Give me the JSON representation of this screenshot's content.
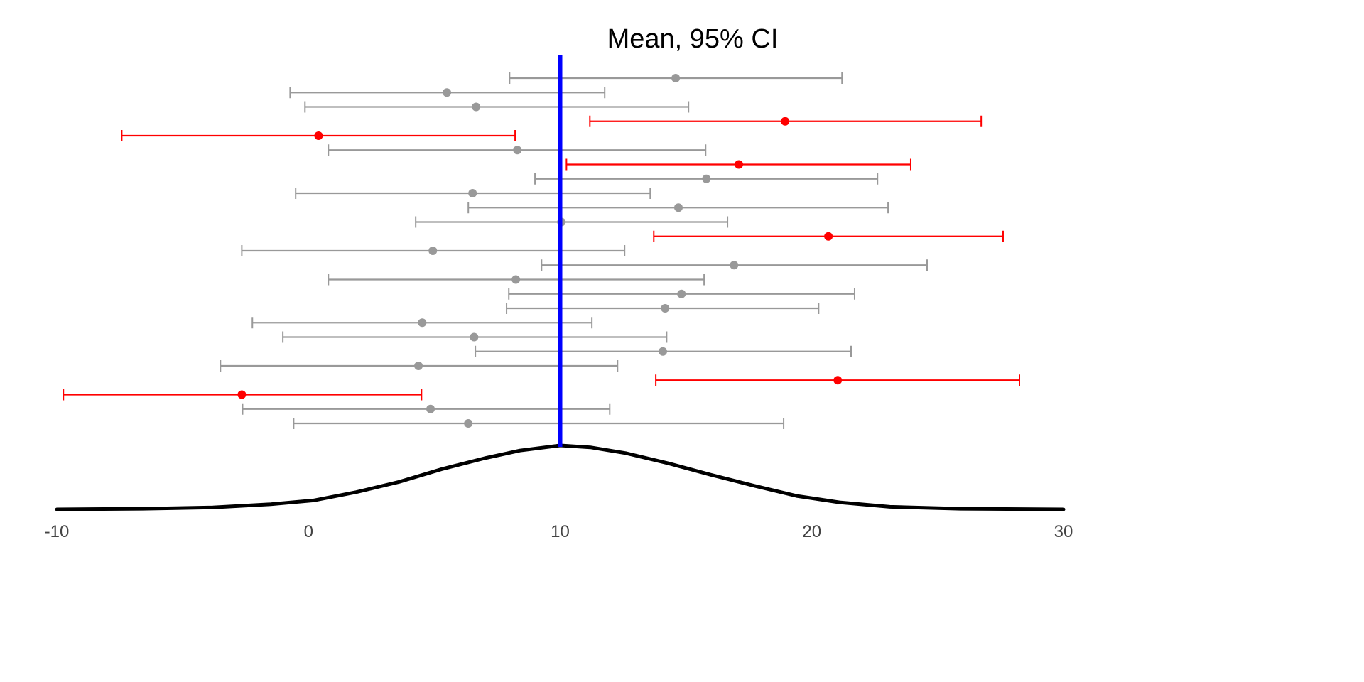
{
  "chart_data": {
    "type": "forest",
    "title": "Mean, 95% CI",
    "xlabel": "",
    "ylabel": "",
    "xlim": [
      -10,
      30
    ],
    "x_ticks": [
      "-10",
      "0",
      "10",
      "20",
      "30"
    ],
    "x_tick_values": [
      -10,
      0,
      10,
      20,
      30
    ],
    "reference_line": {
      "value": 10,
      "color": "#0000ff"
    },
    "colors": {
      "covers": "#999999",
      "misses": "#ff0000",
      "density": "#000000"
    },
    "intervals": [
      {
        "lo": 7.99,
        "mean": 14.59,
        "hi": 21.2,
        "misses": false
      },
      {
        "lo": -0.73,
        "mean": 5.5,
        "hi": 11.77,
        "misses": false
      },
      {
        "lo": -0.14,
        "mean": 6.66,
        "hi": 15.1,
        "misses": false
      },
      {
        "lo": 11.18,
        "mean": 18.94,
        "hi": 26.73,
        "misses": true
      },
      {
        "lo": -7.42,
        "mean": 0.4,
        "hi": 8.21,
        "misses": true
      },
      {
        "lo": 0.79,
        "mean": 8.3,
        "hi": 15.78,
        "misses": false
      },
      {
        "lo": 10.25,
        "mean": 17.1,
        "hi": 23.93,
        "misses": true
      },
      {
        "lo": 9.0,
        "mean": 15.81,
        "hi": 22.61,
        "misses": false
      },
      {
        "lo": -0.51,
        "mean": 6.52,
        "hi": 13.58,
        "misses": false
      },
      {
        "lo": 6.35,
        "mean": 14.7,
        "hi": 23.03,
        "misses": false
      },
      {
        "lo": 4.26,
        "mean": 10.05,
        "hi": 16.65,
        "misses": false
      },
      {
        "lo": 13.72,
        "mean": 20.66,
        "hi": 27.6,
        "misses": true
      },
      {
        "lo": -2.65,
        "mean": 4.94,
        "hi": 12.56,
        "misses": false
      },
      {
        "lo": 9.26,
        "mean": 16.91,
        "hi": 24.58,
        "misses": false
      },
      {
        "lo": 0.79,
        "mean": 8.24,
        "hi": 15.72,
        "misses": false
      },
      {
        "lo": 7.96,
        "mean": 14.82,
        "hi": 21.7,
        "misses": false
      },
      {
        "lo": 7.87,
        "mean": 14.17,
        "hi": 20.27,
        "misses": false
      },
      {
        "lo": -2.23,
        "mean": 4.52,
        "hi": 11.26,
        "misses": false
      },
      {
        "lo": -1.02,
        "mean": 6.58,
        "hi": 14.23,
        "misses": false
      },
      {
        "lo": 6.63,
        "mean": 14.08,
        "hi": 21.56,
        "misses": false
      },
      {
        "lo": -3.5,
        "mean": 4.37,
        "hi": 12.28,
        "misses": false
      },
      {
        "lo": 13.8,
        "mean": 21.03,
        "hi": 28.25,
        "misses": true
      },
      {
        "lo": -9.74,
        "mean": -2.65,
        "hi": 4.49,
        "misses": true
      },
      {
        "lo": -2.62,
        "mean": 4.85,
        "hi": 11.97,
        "misses": false
      },
      {
        "lo": -0.59,
        "mean": 6.35,
        "hi": 18.88,
        "misses": false
      }
    ],
    "density": {
      "x": [
        -10,
        -6.6,
        -3.8,
        -1.5,
        0.2,
        1.9,
        3.6,
        5.3,
        7.0,
        8.4,
        10.0,
        11.2,
        12.6,
        14.3,
        16.0,
        17.7,
        19.4,
        21.1,
        23.1,
        25.9,
        30
      ],
      "y": [
        0,
        0.01,
        0.03,
        0.08,
        0.14,
        0.27,
        0.43,
        0.63,
        0.8,
        0.92,
        1.0,
        0.97,
        0.88,
        0.72,
        0.54,
        0.37,
        0.21,
        0.11,
        0.04,
        0.01,
        0
      ]
    }
  }
}
